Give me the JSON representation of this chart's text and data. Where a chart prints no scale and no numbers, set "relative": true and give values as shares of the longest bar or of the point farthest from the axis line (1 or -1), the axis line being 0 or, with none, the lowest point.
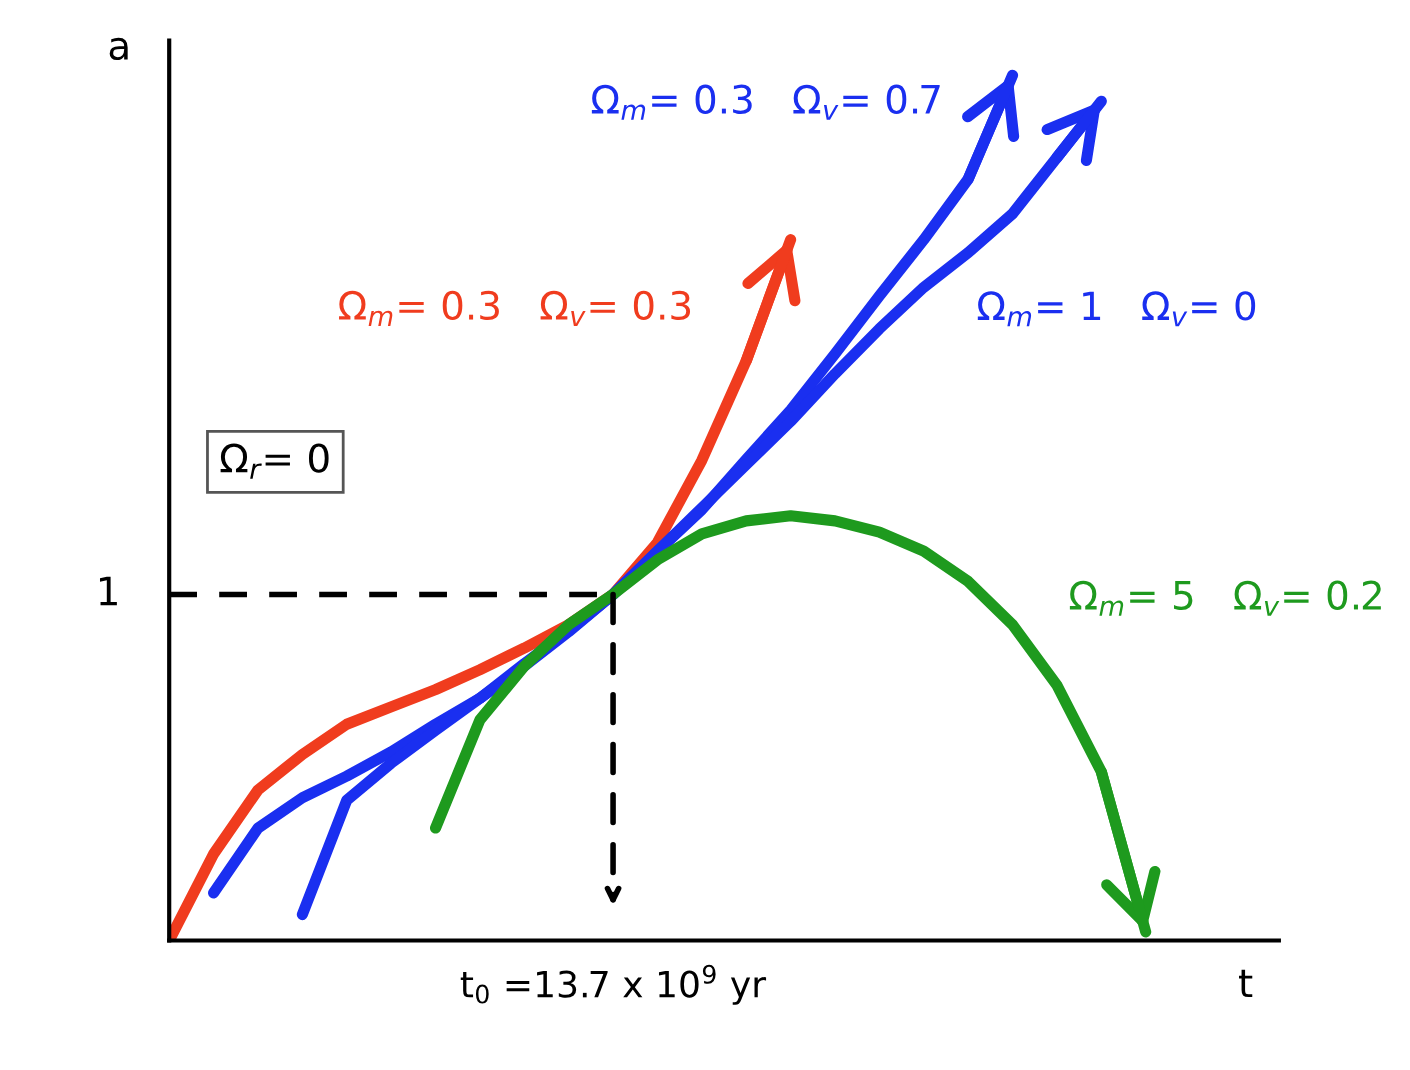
{
  "chart_data": {
    "type": "line",
    "relative": true,
    "xlabel": "t",
    "ylabel": "a",
    "marker": "none",
    "categories": [
      null,
      null,
      null,
      null,
      null,
      null,
      null,
      null,
      null,
      null,
      null,
      null,
      null,
      null,
      null,
      null,
      null,
      null,
      null,
      null,
      null,
      null,
      null,
      null,
      null,
      null
    ],
    "annotations": [
      "1",
      "Ω$_{r}$= 0",
      "t$_{0}$ =13.7 x 10$^{9}$ yr"
    ],
    "series": [
      {
        "name": "Ω$_{m}$= 0.3   Ω$_{v}$= 0.3",
        "color": "#f03c1e",
        "values": [
          0.0,
          0.1,
          0.174,
          0.215,
          0.25,
          0.27,
          0.29,
          0.313,
          0.338,
          0.365,
          0.4,
          0.46,
          0.555,
          0.67,
          0.81,
          null,
          null,
          null,
          null,
          null,
          null,
          null,
          null,
          null,
          null,
          null
        ]
      },
      {
        "name": "Ω$_{m}$= 0.3   Ω$_{v}$= 0.7",
        "color": "#1a2ff0",
        "values": [
          null,
          0.055,
          0.13,
          0.165,
          0.19,
          0.218,
          0.25,
          0.28,
          0.32,
          0.358,
          0.4,
          0.45,
          0.498,
          0.556,
          0.613,
          0.678,
          0.745,
          0.81,
          0.88,
          1.0,
          null,
          null,
          null,
          null,
          null,
          null
        ]
      },
      {
        "name": "Ω$_{m}$= 1   Ω$_{v}$= 0",
        "color": "#1a2ff0",
        "values": [
          null,
          null,
          null,
          0.03,
          0.162,
          0.205,
          0.243,
          0.28,
          0.317,
          0.357,
          0.4,
          0.45,
          0.5,
          0.55,
          0.6,
          0.655,
          0.707,
          0.755,
          0.795,
          0.84,
          0.905,
          0.97,
          null,
          null,
          null,
          null
        ]
      },
      {
        "name": "Ω$_{m}$= 5   Ω$_{v}$= 0.2",
        "color": "#1e9a1e",
        "values": [
          null,
          null,
          null,
          null,
          null,
          null,
          0.13,
          0.255,
          0.317,
          0.365,
          0.4,
          0.44,
          0.47,
          0.485,
          0.491,
          0.485,
          0.472,
          0.45,
          0.415,
          0.365,
          0.295,
          0.195,
          0.01,
          null,
          null,
          null
        ]
      },
      {
        "color": "#000000",
        "line_style": "dashed",
        "values": [
          0.4,
          0.4,
          0.4,
          0.4,
          0.4,
          0.4,
          0.4,
          0.4,
          0.4,
          0.4,
          0.4,
          null,
          null,
          null,
          null,
          null,
          null,
          null,
          null,
          null,
          null,
          null,
          null,
          null,
          null,
          null
        ]
      }
    ]
  }
}
